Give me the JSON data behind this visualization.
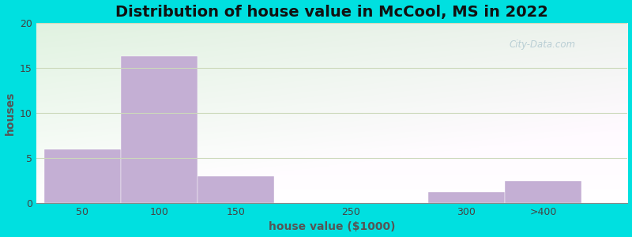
{
  "title": "Distribution of house value in McCool, MS in 2022",
  "xlabel": "house value ($1000)",
  "ylabel": "houses",
  "bar_labels": [
    "50",
    "100",
    "150",
    "250",
    "300",
    ">400"
  ],
  "bar_values": [
    6,
    16.3,
    3,
    0,
    1.2,
    2.5
  ],
  "bar_left_edges": [
    0,
    1,
    2,
    3,
    5,
    6
  ],
  "bar_widths": [
    1,
    1,
    1,
    0,
    1,
    1
  ],
  "bar_color": "#c4afd4",
  "bar_edgecolor": "#c4afd4",
  "ylim": [
    0,
    20
  ],
  "yticks": [
    0,
    5,
    10,
    15,
    20
  ],
  "xtick_positions": [
    0.5,
    1.5,
    2.5,
    4,
    5.5,
    6.5
  ],
  "background_outer": "#00e0e0",
  "grid_color": "#ccd9bb",
  "title_fontsize": 14,
  "axis_label_fontsize": 10,
  "tick_fontsize": 9,
  "watermark": "City-Data.com"
}
